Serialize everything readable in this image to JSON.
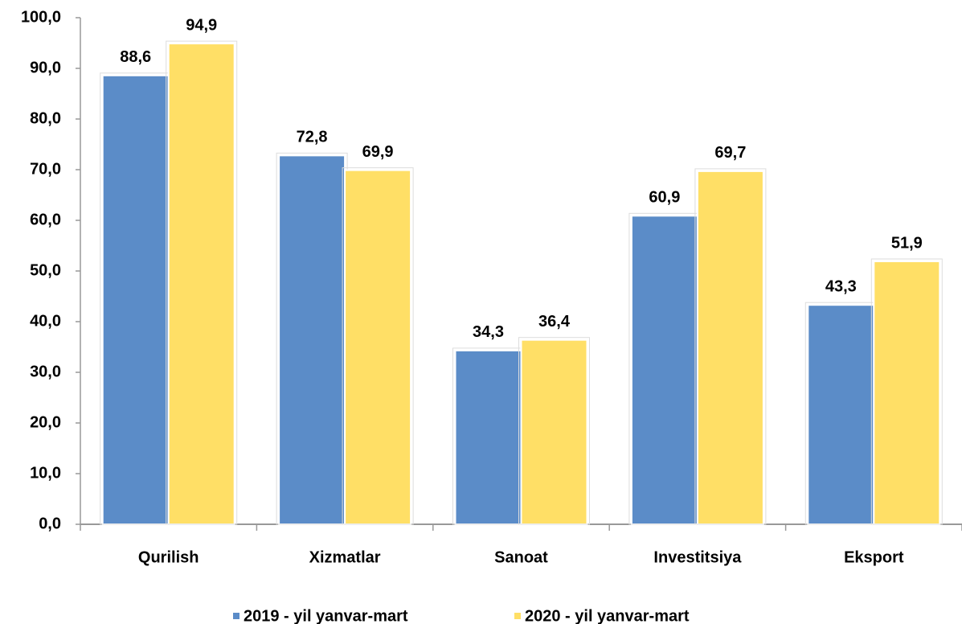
{
  "chart_data": {
    "type": "bar",
    "categories": [
      "Qurilish",
      "Xizmatlar",
      "Sanoat",
      "Investitsiya",
      "Eksport"
    ],
    "series": [
      {
        "name": "2019 - yil yanvar-mart",
        "color": "#5b8cc8",
        "values": [
          88.6,
          72.8,
          34.3,
          60.9,
          43.3
        ],
        "value_labels": [
          "88,6",
          "72,8",
          "34,3",
          "60,9",
          "43,3"
        ]
      },
      {
        "name": "2020 - yil yanvar-mart",
        "color": "#ffdf66",
        "values": [
          94.9,
          69.9,
          36.4,
          69.7,
          51.9
        ],
        "value_labels": [
          "94,9",
          "69,9",
          "36,4",
          "69,7",
          "51,9"
        ]
      }
    ],
    "ylim": [
      0,
      100
    ],
    "yticks": [
      {
        "value": 0,
        "label": "0,0"
      },
      {
        "value": 10,
        "label": "10,0"
      },
      {
        "value": 20,
        "label": "20,0"
      },
      {
        "value": 30,
        "label": "30,0"
      },
      {
        "value": 40,
        "label": "40,0"
      },
      {
        "value": 50,
        "label": "50,0"
      },
      {
        "value": 60,
        "label": "60,0"
      },
      {
        "value": 70,
        "label": "70,0"
      },
      {
        "value": 80,
        "label": "80,0"
      },
      {
        "value": 90,
        "label": "90,0"
      },
      {
        "value": 100,
        "label": "100,0"
      }
    ],
    "legend": "bottom"
  }
}
